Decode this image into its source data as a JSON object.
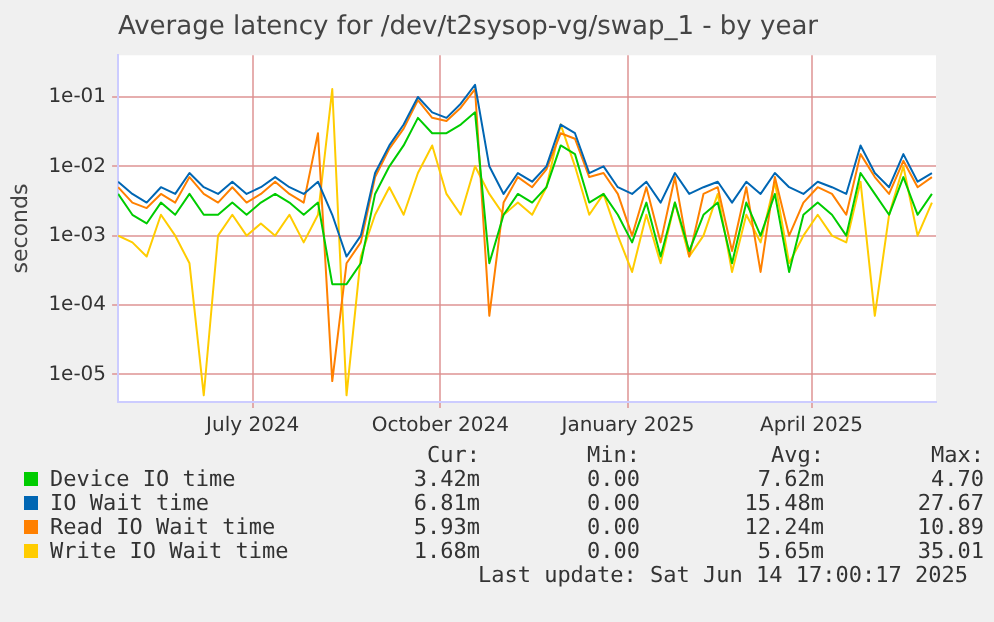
{
  "chart_data": {
    "type": "line",
    "title": "Average latency for /dev/t2sysop-vg/swap_1 - by year",
    "ylabel": "seconds",
    "x": [
      "2024-04-26",
      "2024-05-03",
      "2024-05-10",
      "2024-05-17",
      "2024-05-24",
      "2024-05-31",
      "2024-06-07",
      "2024-06-14",
      "2024-06-21",
      "2024-06-28",
      "2024-07-05",
      "2024-07-12",
      "2024-07-19",
      "2024-07-26",
      "2024-08-02",
      "2024-08-09",
      "2024-08-16",
      "2024-08-23",
      "2024-08-30",
      "2024-09-06",
      "2024-09-13",
      "2024-09-20",
      "2024-09-27",
      "2024-10-04",
      "2024-10-11",
      "2024-10-18",
      "2024-10-25",
      "2024-11-01",
      "2024-11-08",
      "2024-11-15",
      "2024-11-22",
      "2024-11-29",
      "2024-12-06",
      "2024-12-13",
      "2024-12-20",
      "2024-12-27",
      "2025-01-03",
      "2025-01-10",
      "2025-01-17",
      "2025-01-24",
      "2025-01-31",
      "2025-02-07",
      "2025-02-14",
      "2025-02-21",
      "2025-02-28",
      "2025-03-07",
      "2025-03-14",
      "2025-03-21",
      "2025-03-28",
      "2025-04-04",
      "2025-04-11",
      "2025-04-18",
      "2025-04-25",
      "2025-05-02",
      "2025-05-09",
      "2025-05-16",
      "2025-05-23",
      "2025-05-30"
    ],
    "series": [
      {
        "name": "Device IO time",
        "color": "#00cc00",
        "values": [
          0.004,
          0.002,
          0.0015,
          0.003,
          0.002,
          0.004,
          0.002,
          0.002,
          0.003,
          0.002,
          0.003,
          0.004,
          0.003,
          0.002,
          0.003,
          0.0002,
          0.0002,
          0.0004,
          0.004,
          0.01,
          0.02,
          0.05,
          0.03,
          0.03,
          0.04,
          0.06,
          0.0004,
          0.002,
          0.004,
          0.003,
          0.005,
          0.02,
          0.015,
          0.003,
          0.004,
          0.002,
          0.0008,
          0.003,
          0.0005,
          0.003,
          0.0006,
          0.002,
          0.003,
          0.0004,
          0.003,
          0.001,
          0.004,
          0.0003,
          0.002,
          0.003,
          0.002,
          0.001,
          0.008,
          0.004,
          0.002,
          0.007,
          0.002,
          0.004
        ]
      },
      {
        "name": "IO Wait time",
        "color": "#0066b3",
        "values": [
          0.006,
          0.004,
          0.003,
          0.005,
          0.004,
          0.008,
          0.005,
          0.004,
          0.006,
          0.004,
          0.005,
          0.007,
          0.005,
          0.004,
          0.006,
          0.002,
          0.0005,
          0.001,
          0.008,
          0.02,
          0.04,
          0.1,
          0.06,
          0.05,
          0.08,
          0.15,
          0.01,
          0.004,
          0.008,
          0.006,
          0.01,
          0.04,
          0.03,
          0.008,
          0.01,
          0.005,
          0.004,
          0.006,
          0.003,
          0.008,
          0.004,
          0.005,
          0.006,
          0.003,
          0.006,
          0.004,
          0.008,
          0.005,
          0.004,
          0.006,
          0.005,
          0.004,
          0.02,
          0.008,
          0.005,
          0.015,
          0.006,
          0.008
        ]
      },
      {
        "name": "Read IO Wait time",
        "color": "#ff8000",
        "values": [
          0.005,
          0.003,
          0.0025,
          0.004,
          0.003,
          0.007,
          0.004,
          0.003,
          0.005,
          0.003,
          0.004,
          0.006,
          0.004,
          0.003,
          0.03,
          8e-06,
          0.0004,
          0.0008,
          0.007,
          0.018,
          0.035,
          0.09,
          0.05,
          0.045,
          0.07,
          0.13,
          7e-05,
          0.003,
          0.007,
          0.005,
          0.009,
          0.03,
          0.025,
          0.007,
          0.008,
          0.004,
          0.001,
          0.005,
          0.0008,
          0.007,
          0.0005,
          0.004,
          0.005,
          0.0006,
          0.005,
          0.0003,
          0.007,
          0.001,
          0.003,
          0.005,
          0.004,
          0.002,
          0.015,
          0.007,
          0.004,
          0.012,
          0.005,
          0.007
        ]
      },
      {
        "name": "Write IO Wait time",
        "color": "#ffcc00",
        "values": [
          0.001,
          0.0008,
          0.0005,
          0.002,
          0.001,
          0.0004,
          5e-06,
          0.001,
          0.002,
          0.001,
          0.0015,
          0.001,
          0.002,
          0.0008,
          0.002,
          0.13,
          5e-06,
          0.0005,
          0.002,
          0.005,
          0.002,
          0.008,
          0.02,
          0.004,
          0.002,
          0.01,
          0.004,
          0.002,
          0.003,
          0.002,
          0.005,
          0.04,
          0.01,
          0.002,
          0.004,
          0.001,
          0.0003,
          0.002,
          0.0004,
          0.003,
          0.0005,
          0.001,
          0.004,
          0.0003,
          0.002,
          0.0008,
          0.006,
          0.0004,
          0.001,
          0.002,
          0.001,
          0.0008,
          0.006,
          7e-05,
          0.002,
          0.01,
          0.001,
          0.003
        ]
      }
    ],
    "log": "y",
    "ylim": [
      4e-06,
      0.4
    ],
    "yticks": [
      {
        "value": 1e-05,
        "label": "1e-05"
      },
      {
        "value": 0.0001,
        "label": "1e-04"
      },
      {
        "value": 0.001,
        "label": "1e-03"
      },
      {
        "value": 0.01,
        "label": "1e-02"
      },
      {
        "value": 0.1,
        "label": "1e-01"
      }
    ],
    "xlim": [
      "2024-04-26",
      "2025-06-01"
    ],
    "xticks": [
      {
        "value": "2024-07-01",
        "label": "July 2024"
      },
      {
        "value": "2024-10-01",
        "label": "October 2024"
      },
      {
        "value": "2025-01-01",
        "label": "January 2025"
      },
      {
        "value": "2025-04-01",
        "label": "April 2025"
      }
    ],
    "grid": true,
    "legend": "bottom",
    "marker": "none",
    "line_style": "solid",
    "annotations": [
      "Cur:",
      "Min:",
      "Avg:",
      "Max:",
      "3.42m",
      "0.00",
      "7.62m",
      "4.70",
      "6.81m",
      "0.00",
      "15.48m",
      "27.67",
      "5.93m",
      "0.00",
      "12.24m",
      "10.89",
      "1.68m",
      "0.00",
      "5.65m",
      "35.01",
      "Last update: Sat Jun 14 17:00:17 2025"
    ]
  }
}
